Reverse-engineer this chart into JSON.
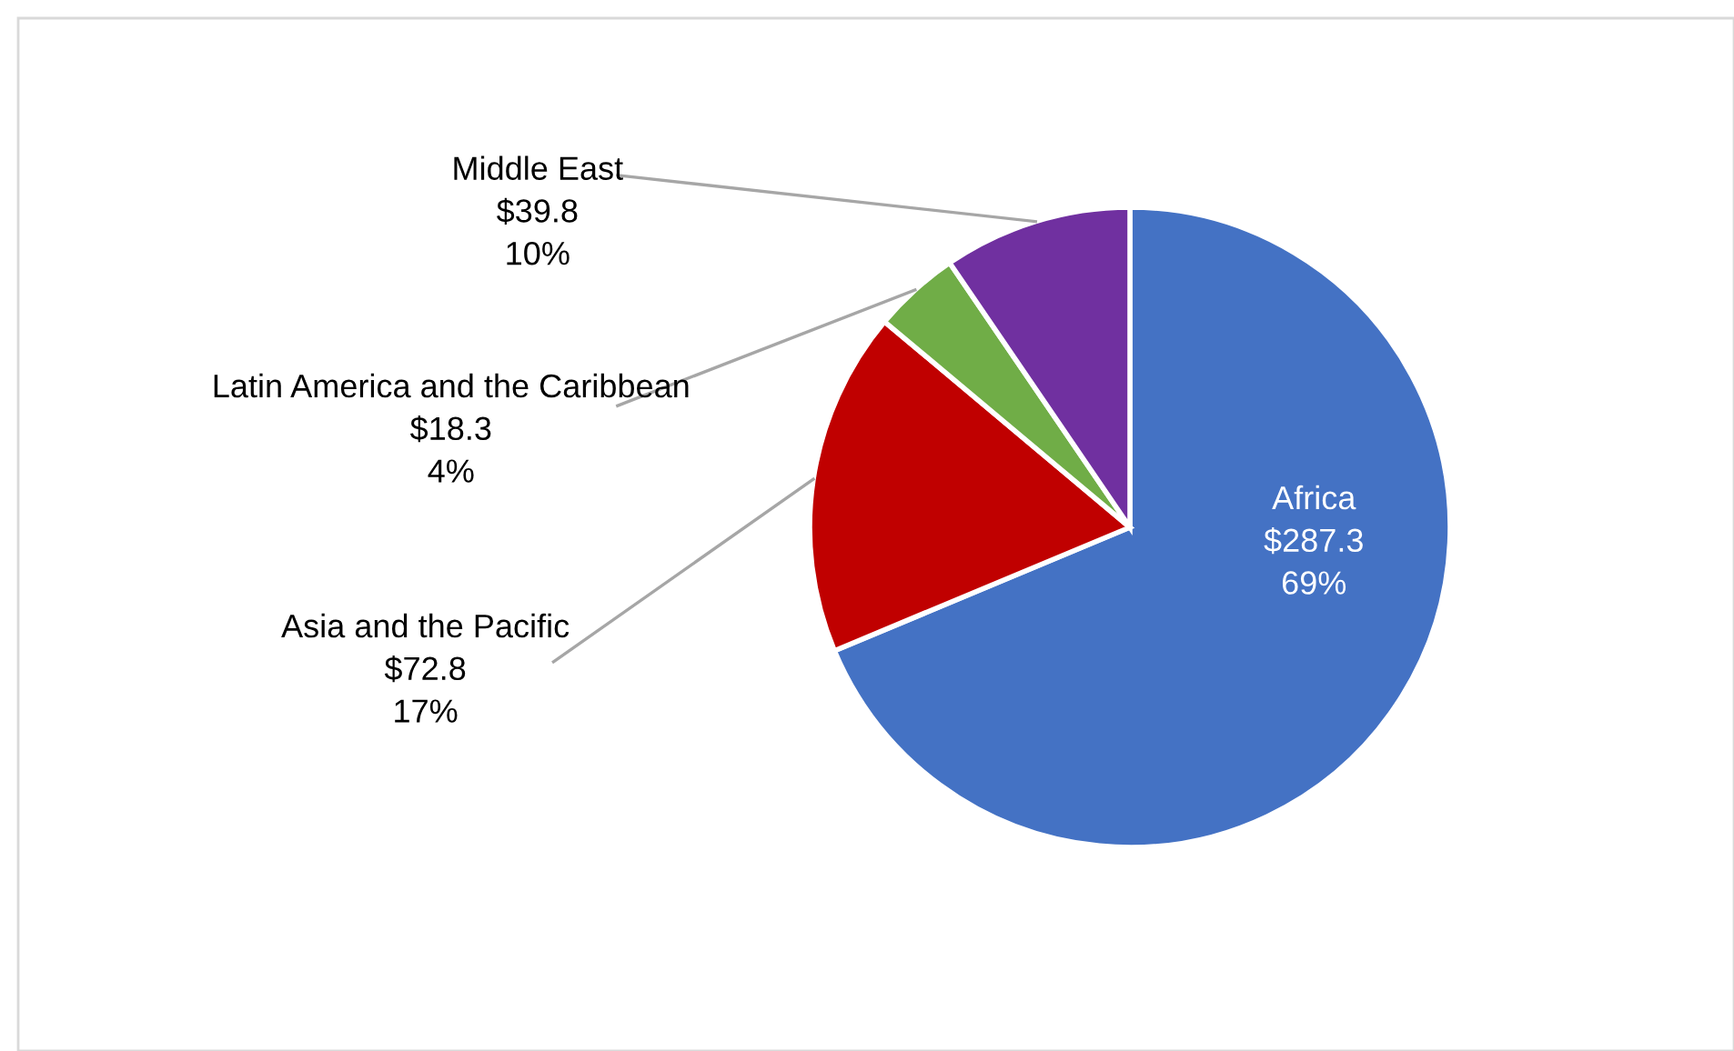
{
  "chart_data": {
    "type": "pie",
    "categories": [
      "Africa",
      "Asia and the Pacific",
      "Latin America and the Caribbean",
      "Middle East"
    ],
    "values": [
      287.3,
      72.8,
      18.3,
      39.8
    ],
    "colors": [
      "#4472c4",
      "#c00000",
      "#70ad47",
      "#7030a0"
    ],
    "value_labels": [
      "$287.3\n69%",
      "$72.8\n17%",
      "$18.3\n4%",
      "$39.8\n10%"
    ],
    "legend": false
  }
}
